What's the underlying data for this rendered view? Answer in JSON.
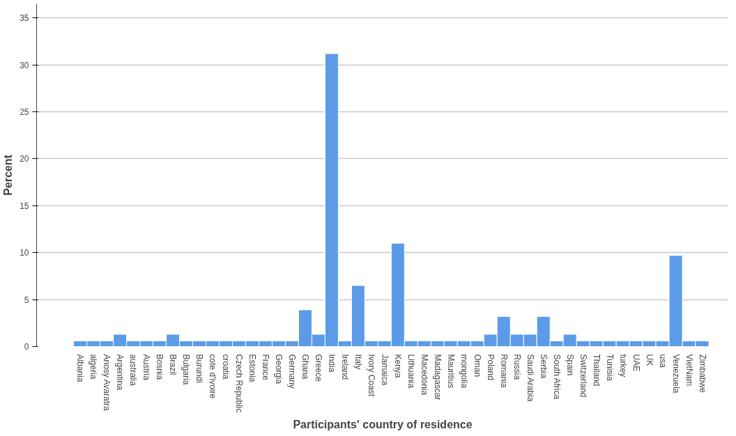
{
  "chart_data": {
    "type": "bar",
    "xlabel": "Participants' country of residence",
    "ylabel": "Percent",
    "categories": [
      "Albania",
      "algeria",
      "Anosy Avaratra",
      "Argentina",
      "australia",
      "Austria",
      "Bosnia",
      "Brazil",
      "Bulgaria",
      "Burundi",
      "cote d'ivoire",
      "croatia",
      "Czech Republic",
      "Estonia",
      "France",
      "Georgia",
      "Germany",
      "Ghana",
      "Greece",
      "India",
      "Ireland",
      "Italy",
      "Ivory Coast",
      "Jamaica",
      "Kenya",
      "Lithuania",
      "Macedonia",
      "Madagascar",
      "Mauritius",
      "mongolia",
      "Oman",
      "Poland",
      "Romania",
      "Russia",
      "Saudi Arabia",
      "Serbia",
      "South Africa",
      "Spain",
      "Switzerland",
      "Thailand",
      "Tunisia",
      "turkey",
      "UAE",
      "UK",
      "usa",
      "Venezuela",
      "VietNam",
      "Zimbabwe"
    ],
    "values": [
      0.6,
      0.6,
      0.6,
      1.3,
      0.6,
      0.6,
      0.6,
      1.3,
      0.6,
      0.6,
      0.6,
      0.6,
      0.6,
      0.6,
      0.6,
      0.6,
      0.6,
      3.9,
      1.3,
      31.2,
      0.6,
      6.5,
      0.6,
      0.6,
      11.0,
      0.6,
      0.6,
      0.6,
      0.6,
      0.6,
      0.6,
      1.3,
      3.2,
      1.3,
      1.3,
      3.2,
      0.6,
      1.3,
      0.6,
      0.6,
      0.6,
      0.6,
      0.6,
      0.6,
      0.6,
      9.7,
      0.6,
      0.6
    ],
    "color": "#5b9be8",
    "ylim": [
      0,
      36.5
    ],
    "yticks": [
      0,
      5,
      10,
      15,
      20,
      25,
      30,
      35
    ],
    "grid": "y"
  }
}
